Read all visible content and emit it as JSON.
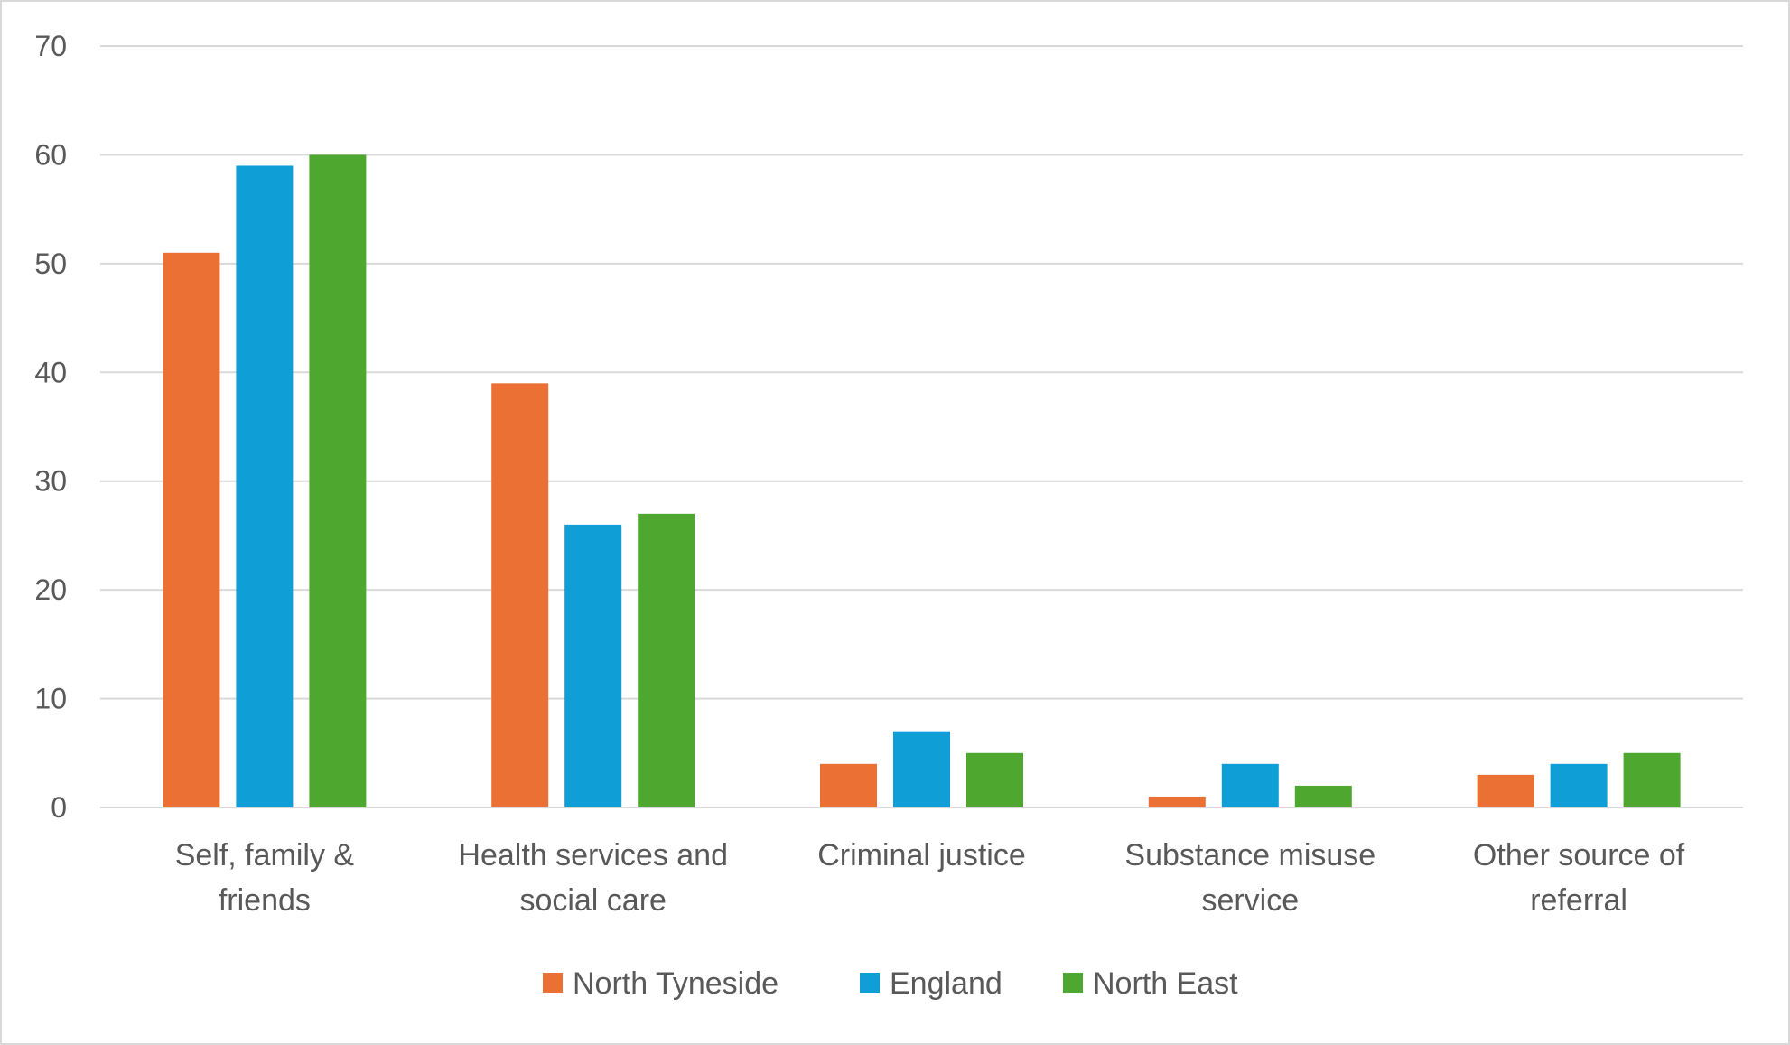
{
  "chart_data": {
    "type": "bar",
    "title": "",
    "xlabel": "",
    "ylabel": "",
    "ylim": [
      0,
      70
    ],
    "yticks": [
      0,
      10,
      20,
      30,
      40,
      50,
      60,
      70
    ],
    "grid": true,
    "legend_position": "bottom",
    "categories": [
      [
        "Self, family &",
        "friends"
      ],
      [
        "Health services and",
        "social care"
      ],
      [
        "Criminal justice"
      ],
      [
        "Substance misuse",
        "service"
      ],
      [
        "Other source of",
        "referral"
      ]
    ],
    "series": [
      {
        "name": "North Tyneside",
        "color": "#EA7133",
        "values": [
          51,
          39,
          4,
          1,
          3
        ]
      },
      {
        "name": "England",
        "color": "#0F9ED5",
        "values": [
          59,
          26,
          7,
          4,
          4
        ]
      },
      {
        "name": "North East",
        "color": "#4EA72E",
        "values": [
          60,
          27,
          5,
          2,
          5
        ]
      }
    ]
  }
}
